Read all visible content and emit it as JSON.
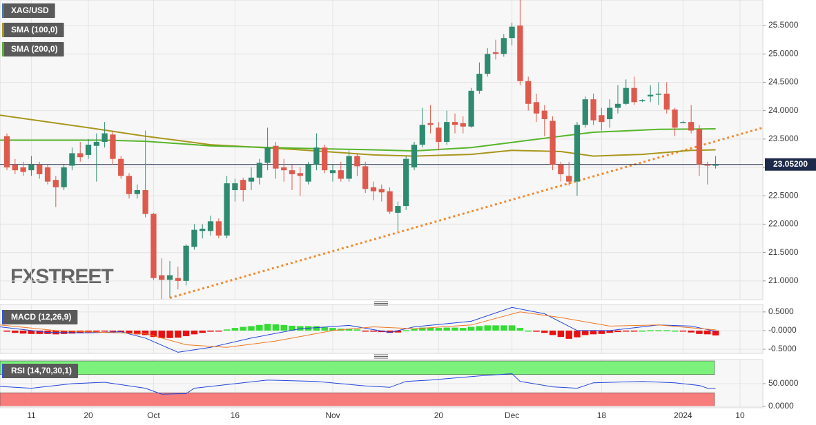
{
  "chart_data": [
    {
      "type": "candlestick",
      "name": "XAG/USD",
      "legend_color": "#4a78a8",
      "up_color": "#2e8b6f",
      "down_color": "#dd5a4c",
      "x": [
        0,
        1,
        2,
        3,
        4,
        5,
        6,
        7,
        8,
        9,
        10,
        11,
        12,
        13,
        14,
        15,
        16,
        17,
        18,
        19,
        20,
        21,
        22,
        23,
        24,
        25,
        26,
        27,
        28,
        29,
        30,
        31,
        32,
        33,
        34,
        35,
        36,
        37,
        38,
        39,
        40,
        41,
        42,
        43,
        44,
        45,
        46,
        47,
        48,
        49,
        50,
        51,
        52,
        53,
        54,
        55,
        56,
        57,
        58,
        59,
        60,
        61,
        62,
        63,
        64,
        65,
        66,
        67,
        68,
        69,
        70,
        71,
        72,
        73,
        74,
        75,
        76,
        77,
        78,
        79,
        80,
        81,
        82,
        83,
        84,
        85,
        86,
        87
      ],
      "open": [
        23.55,
        23.05,
        23.0,
        22.95,
        23.05,
        23.0,
        22.78,
        22.65,
        23.03,
        23.25,
        23.22,
        23.38,
        23.45,
        23.58,
        23.15,
        22.85,
        22.53,
        22.6,
        22.18,
        21.1,
        21.02,
        21.05,
        21.0,
        21.6,
        21.88,
        21.88,
        22.05,
        21.8,
        22.6,
        22.78,
        22.75,
        22.82,
        23.08,
        23.38,
        23.0,
        22.95,
        22.9,
        22.75,
        23.05,
        23.35,
        22.9,
        22.95,
        22.8,
        23.2,
        23.02,
        22.65,
        22.62,
        22.58,
        22.2,
        22.32,
        23.0,
        23.4,
        23.78,
        23.7,
        23.45,
        23.8,
        23.78,
        23.72,
        24.35,
        24.65,
        25.03,
        25.0,
        25.28,
        25.5,
        24.52,
        24.15,
        24.0,
        23.82,
        23.05,
        22.85,
        22.75,
        23.75,
        24.2,
        23.92,
        23.85,
        24.05,
        24.12,
        24.4,
        24.18,
        24.25,
        24.28,
        24.3,
        24.02,
        23.8,
        23.8,
        23.68,
        23.05,
        23.03
      ],
      "high": [
        23.6,
        23.15,
        23.1,
        23.2,
        23.1,
        23.05,
        22.85,
        23.05,
        23.35,
        23.45,
        23.5,
        23.6,
        23.8,
        23.65,
        23.2,
        22.9,
        22.7,
        23.65,
        22.2,
        21.4,
        21.35,
        21.25,
        21.65,
        22.0,
        22.0,
        22.15,
        22.1,
        22.85,
        22.8,
        22.82,
        23.0,
        23.15,
        23.7,
        23.45,
        23.15,
        23.05,
        23.0,
        23.1,
        23.6,
        23.4,
        23.05,
        23.1,
        23.3,
        23.25,
        23.1,
        22.75,
        22.7,
        22.65,
        22.4,
        23.2,
        23.45,
        24.05,
        24.1,
        23.8,
        24.0,
        23.95,
        23.9,
        24.4,
        24.85,
        25.1,
        25.25,
        25.35,
        25.55,
        25.95,
        24.6,
        24.3,
        24.1,
        23.9,
        23.1,
        23.1,
        23.8,
        24.25,
        24.3,
        24.05,
        24.2,
        24.45,
        24.55,
        24.6,
        24.2,
        24.45,
        24.5,
        24.5,
        24.05,
        23.82,
        24.1,
        23.75,
        23.1,
        23.2
      ],
      "low": [
        22.95,
        22.88,
        22.85,
        22.85,
        22.8,
        22.7,
        22.3,
        22.6,
        22.95,
        23.1,
        23.15,
        22.75,
        23.35,
        23.05,
        22.8,
        22.45,
        22.45,
        22.12,
        21.02,
        20.68,
        20.7,
        20.85,
        20.92,
        21.55,
        21.75,
        21.8,
        21.75,
        21.75,
        22.4,
        22.4,
        22.6,
        22.7,
        22.95,
        22.8,
        22.75,
        22.6,
        22.5,
        22.7,
        22.95,
        22.9,
        22.75,
        22.75,
        22.75,
        22.85,
        22.55,
        22.42,
        22.4,
        22.18,
        21.88,
        22.25,
        22.95,
        23.35,
        23.6,
        23.3,
        23.4,
        23.6,
        23.6,
        23.7,
        24.3,
        24.6,
        24.9,
        24.95,
        25.15,
        24.45,
        24.0,
        23.8,
        23.55,
        22.95,
        22.75,
        22.68,
        22.5,
        23.7,
        23.75,
        23.65,
        23.7,
        23.95,
        24.1,
        24.1,
        24.15,
        24.15,
        24.1,
        23.95,
        23.55,
        23.78,
        23.6,
        22.85,
        22.7,
        22.98
      ],
      "close": [
        23.0,
        22.95,
        22.92,
        23.05,
        22.88,
        22.75,
        22.65,
        23.0,
        23.25,
        23.18,
        23.4,
        23.45,
        23.6,
        23.15,
        22.85,
        22.53,
        22.6,
        22.18,
        21.05,
        21.02,
        21.1,
        21.0,
        21.62,
        21.9,
        21.92,
        22.05,
        21.8,
        22.72,
        22.72,
        22.6,
        22.82,
        23.08,
        23.35,
        22.98,
        22.95,
        22.88,
        22.85,
        23.05,
        23.35,
        22.95,
        22.95,
        22.8,
        23.2,
        23.02,
        22.62,
        22.58,
        22.56,
        22.22,
        22.32,
        23.15,
        23.4,
        23.75,
        23.75,
        23.45,
        23.8,
        23.75,
        23.72,
        24.35,
        24.65,
        25.0,
        25.0,
        25.28,
        25.48,
        24.52,
        24.12,
        23.95,
        23.85,
        23.05,
        22.88,
        22.75,
        23.75,
        24.2,
        23.83,
        23.8,
        24.05,
        24.12,
        24.4,
        24.15,
        24.19,
        24.28,
        24.3,
        24.02,
        23.7,
        23.8,
        23.65,
        23.05,
        23.03,
        23.05
      ],
      "xlim": [
        -0.85,
        92.8
      ],
      "xticks": [
        {
          "value": 3,
          "label": "11"
        },
        {
          "value": 10,
          "label": "20"
        },
        {
          "value": 18,
          "label": "Oct"
        },
        {
          "value": 28,
          "label": "16"
        },
        {
          "value": 40,
          "label": "Nov"
        },
        {
          "value": 53,
          "label": "20"
        },
        {
          "value": 62,
          "label": "Dec"
        },
        {
          "value": 73,
          "label": "18"
        },
        {
          "value": 83,
          "label": "2024"
        },
        {
          "value": 90,
          "label": "10"
        }
      ],
      "ylim": [
        20.67,
        25.95
      ],
      "yticks": [
        {
          "value": 25.5,
          "label": "25.5000"
        },
        {
          "value": 25.0,
          "label": "25.0000"
        },
        {
          "value": 24.5,
          "label": "24.5000"
        },
        {
          "value": 24.0,
          "label": "24.0000"
        },
        {
          "value": 23.5,
          "label": "23.5000"
        },
        {
          "value": 23.0,
          "label": "23.0000"
        },
        {
          "value": 22.5,
          "label": "22.5000"
        },
        {
          "value": 22.0,
          "label": "22.0000"
        },
        {
          "value": 21.5,
          "label": "21.5000"
        },
        {
          "value": 21.0,
          "label": "21.0000"
        }
      ],
      "grid": true,
      "overlays": [
        {
          "name": "SMA (100,0)",
          "color": "#a8961c",
          "x": [
            -0.85,
            10,
            17,
            25,
            35,
            45,
            50,
            57,
            62,
            68,
            72,
            78,
            84,
            87
          ],
          "values": [
            23.92,
            23.7,
            23.55,
            23.4,
            23.32,
            23.22,
            23.2,
            23.23,
            23.3,
            23.28,
            23.2,
            23.23,
            23.3,
            23.31
          ]
        },
        {
          "name": "SMA (200,0)",
          "color": "#56b52a",
          "x": [
            -0.85,
            5,
            12,
            17,
            25,
            35,
            45,
            50,
            57,
            62,
            68,
            72,
            80,
            87
          ],
          "values": [
            23.48,
            23.48,
            23.48,
            23.46,
            23.38,
            23.34,
            23.31,
            23.29,
            23.35,
            23.44,
            23.55,
            23.62,
            23.67,
            23.68
          ]
        }
      ],
      "trendline": {
        "color": "#f28a2e",
        "x": [
          20,
          92.8
        ],
        "values": [
          20.7,
          23.7
        ]
      },
      "last_price": {
        "value": 23.052,
        "label": "23.05200",
        "color": "#1e2a4a"
      },
      "watermark": "FXSTREET"
    },
    {
      "type": "macd",
      "title": "MACD (12,26,9)",
      "legend_color": "#3355dd",
      "ylim": [
        -0.61,
        0.7
      ],
      "yticks": [
        {
          "value": 0.5,
          "label": "0.5000"
        },
        {
          "value": 0,
          "label": "-0.0000"
        },
        {
          "value": -0.5,
          "label": "-0.5000"
        }
      ],
      "histogram": [
        -0.03,
        -0.06,
        -0.08,
        -0.09,
        -0.09,
        -0.09,
        -0.1,
        -0.09,
        -0.08,
        -0.07,
        -0.05,
        -0.03,
        -0.01,
        -0.02,
        -0.04,
        -0.08,
        -0.1,
        -0.12,
        -0.17,
        -0.2,
        -0.2,
        -0.19,
        -0.15,
        -0.1,
        -0.06,
        -0.03,
        -0.01,
        0.03,
        0.07,
        0.1,
        0.12,
        0.15,
        0.18,
        0.17,
        0.15,
        0.13,
        0.12,
        0.12,
        0.12,
        0.09,
        0.07,
        0.05,
        0.05,
        0.03,
        -0.01,
        -0.03,
        -0.04,
        -0.06,
        -0.05,
        0.01,
        0.05,
        0.08,
        0.08,
        0.07,
        0.08,
        0.08,
        0.07,
        0.1,
        0.12,
        0.14,
        0.14,
        0.14,
        0.14,
        0.07,
        0,
        -0.03,
        -0.06,
        -0.12,
        -0.17,
        -0.22,
        -0.18,
        -0.12,
        -0.1,
        -0.09,
        -0.06,
        -0.04,
        -0.02,
        -0.01,
        0,
        0.01,
        0.01,
        0.01,
        0,
        -0.02,
        -0.05,
        -0.09,
        -0.1,
        -0.13
      ],
      "up_color": "#33dd33",
      "down_color": "#e81010",
      "lines": [
        {
          "color": "#2244dd",
          "x": [
            -0.85,
            5,
            10,
            14,
            17,
            21,
            25,
            30,
            36,
            42,
            47,
            50,
            57,
            62,
            66,
            70,
            74,
            80,
            84,
            87
          ],
          "values": [
            0.1,
            -0.05,
            -0.06,
            -0.03,
            -0.2,
            -0.58,
            -0.45,
            -0.2,
            0.05,
            0.14,
            -0.05,
            0.1,
            0.25,
            0.62,
            0.45,
            0.0,
            0.0,
            0.15,
            0.12,
            -0.02
          ]
        },
        {
          "color": "#f07820",
          "x": [
            -0.85,
            6,
            12,
            17,
            22,
            27,
            33,
            40,
            45,
            50,
            57,
            63,
            68,
            74,
            80,
            87
          ],
          "values": [
            0.15,
            0.0,
            -0.05,
            -0.08,
            -0.38,
            -0.45,
            -0.28,
            0.0,
            0.1,
            0.05,
            0.15,
            0.5,
            0.35,
            0.12,
            0.15,
            0.02
          ]
        }
      ]
    },
    {
      "type": "rsi",
      "title": "RSI (14,70,30,1)",
      "legend_color": "#3355dd",
      "ylim": [
        -3,
        103
      ],
      "yticks": [
        {
          "value": 50,
          "label": "50.0000"
        },
        {
          "value": 0,
          "label": "0.0000"
        }
      ],
      "overbought": 70,
      "oversold": 30,
      "overbought_color": "#7cf27c",
      "oversold_color": "#f77c7c",
      "line": {
        "color": "#2244dd",
        "x": [
          -0.85,
          3,
          8,
          12,
          17,
          19,
          22,
          23,
          28,
          32,
          38,
          44,
          47,
          49,
          52,
          58,
          62,
          63,
          67,
          70,
          72,
          78,
          82,
          85,
          86,
          87
        ],
        "values": [
          44,
          40,
          50,
          53,
          40,
          27,
          28,
          40,
          50,
          58,
          55,
          45,
          42,
          55,
          58,
          67,
          72,
          55,
          43,
          40,
          52,
          55,
          52,
          46,
          40,
          40
        ]
      }
    }
  ]
}
